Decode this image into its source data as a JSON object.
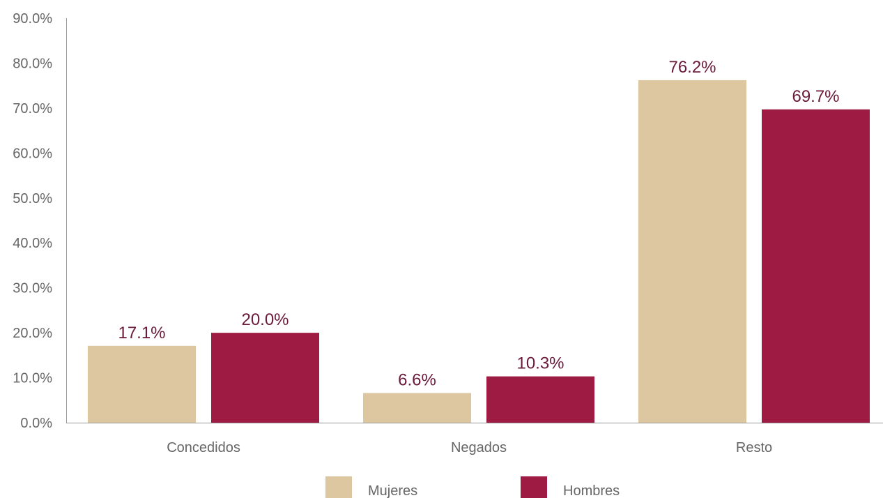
{
  "chart_data": {
    "type": "bar",
    "categories": [
      "Concedidos",
      "Negados",
      "Resto"
    ],
    "series": [
      {
        "name": "Mujeres",
        "values": [
          17.1,
          6.6,
          76.2
        ],
        "color": "#dcc7a0"
      },
      {
        "name": "Hombres",
        "values": [
          20.0,
          10.3,
          69.7
        ],
        "color": "#9e1c43"
      }
    ],
    "value_labels": [
      [
        "17.1%",
        "6.6%",
        "76.2%"
      ],
      [
        "20.0%",
        "10.3%",
        "69.7%"
      ]
    ],
    "yticks": [
      "0.0%",
      "10.0%",
      "20.0%",
      "30.0%",
      "40.0%",
      "50.0%",
      "60.0%",
      "70.0%",
      "80.0%",
      "90.0%"
    ],
    "ylim": [
      0,
      90
    ],
    "title": "",
    "xlabel": "",
    "ylabel": "",
    "grid": false,
    "legend_position": "bottom",
    "label_color": "#6b1a3a",
    "axis_color": "#999999"
  }
}
